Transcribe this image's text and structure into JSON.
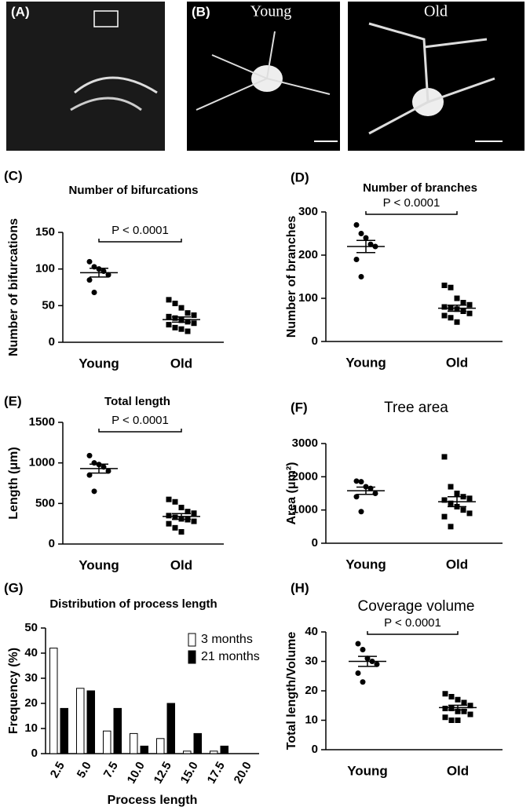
{
  "images": [
    {
      "label": "(A)"
    },
    {
      "label": "(B)",
      "title": "Young"
    },
    {
      "title": "Old"
    }
  ],
  "chart_data": [
    {
      "type": "dot",
      "panel": "(C)",
      "title": "Number of bifurcations",
      "ylabel": "Number of bifurcations",
      "categories": [
        "Young",
        "Old"
      ],
      "points": [
        [
          110,
          103,
          100,
          97,
          92,
          85,
          68
        ],
        [
          58,
          53,
          47,
          40,
          37,
          35,
          33,
          30,
          28,
          26,
          24,
          20,
          18,
          15
        ]
      ],
      "means": [
        95,
        31
      ],
      "sems": [
        6,
        3.5
      ],
      "ylim": [
        0,
        150
      ],
      "yticks": [
        0,
        50,
        100,
        150
      ],
      "annotation": "P < 0.0001"
    },
    {
      "type": "dot",
      "panel": "(D)",
      "title": "Number of branches",
      "ylabel": "Number of branches",
      "categories": [
        "Young",
        "Old"
      ],
      "points": [
        [
          270,
          250,
          240,
          225,
          220,
          190,
          150
        ],
        [
          130,
          125,
          100,
          90,
          85,
          80,
          78,
          75,
          70,
          65,
          60,
          55,
          45
        ]
      ],
      "means": [
        220,
        77
      ],
      "sems": [
        14,
        7
      ],
      "ylim": [
        0,
        300
      ],
      "yticks": [
        0,
        100,
        200,
        300
      ],
      "annotation": "P < 0.0001"
    },
    {
      "type": "dot",
      "panel": "(E)",
      "title": "Total length",
      "ylabel": "Length (μm)",
      "categories": [
        "Young",
        "Old"
      ],
      "points": [
        [
          1090,
          1000,
          980,
          950,
          900,
          850,
          650
        ],
        [
          550,
          520,
          450,
          400,
          380,
          350,
          330,
          310,
          300,
          280,
          250,
          200,
          150
        ]
      ],
      "means": [
        930,
        340
      ],
      "sems": [
        55,
        35
      ],
      "ylim": [
        0,
        1500
      ],
      "yticks": [
        0,
        500,
        1000,
        1500
      ],
      "annotation": "P < 0.0001"
    },
    {
      "type": "dot",
      "panel": "(F)",
      "title": "Tree area",
      "ylabel": "Area (μm²)",
      "categories": [
        "Young",
        "Old"
      ],
      "points": [
        [
          1870,
          1850,
          1700,
          1650,
          1500,
          1400,
          950
        ],
        [
          2600,
          1700,
          1500,
          1400,
          1350,
          1300,
          1200,
          1100,
          1000,
          900,
          800,
          500
        ]
      ],
      "means": [
        1580,
        1250
      ],
      "sems": [
        110,
        150
      ],
      "ylim": [
        0,
        3000
      ],
      "yticks": [
        0,
        1000,
        2000,
        3000
      ]
    },
    {
      "type": "bar",
      "panel": "(G)",
      "title": "Distribution of process length",
      "xlabel": "Process length",
      "ylabel": "Frequency (%)",
      "categories": [
        "2.5",
        "5.0",
        "7.5",
        "10.0",
        "12.5",
        "15.0",
        "17.5",
        "20.0"
      ],
      "series": [
        {
          "name": "3 months",
          "color": "#ffffff",
          "values": [
            42,
            26,
            9,
            8,
            6,
            1,
            1,
            0
          ]
        },
        {
          "name": "21 months",
          "color": "#000000",
          "values": [
            18,
            25,
            18,
            3,
            20,
            8,
            3,
            0
          ]
        }
      ],
      "ylim": [
        0,
        50
      ],
      "yticks": [
        0,
        10,
        20,
        30,
        40,
        50
      ],
      "legend": "upper right"
    },
    {
      "type": "dot",
      "panel": "(H)",
      "title": "Coverage volume",
      "ylabel": "Total length/Volume",
      "categories": [
        "Young",
        "Old"
      ],
      "points": [
        [
          36,
          34,
          31,
          30,
          29,
          26,
          23
        ],
        [
          19,
          18,
          17,
          16,
          15,
          14,
          14,
          13,
          13,
          12,
          11,
          10,
          10
        ]
      ],
      "means": [
        30,
        14.3
      ],
      "sems": [
        1.7,
        0.8
      ],
      "ylim": [
        0,
        40
      ],
      "yticks": [
        0,
        10,
        20,
        30,
        40
      ],
      "annotation": "P < 0.0001"
    }
  ]
}
